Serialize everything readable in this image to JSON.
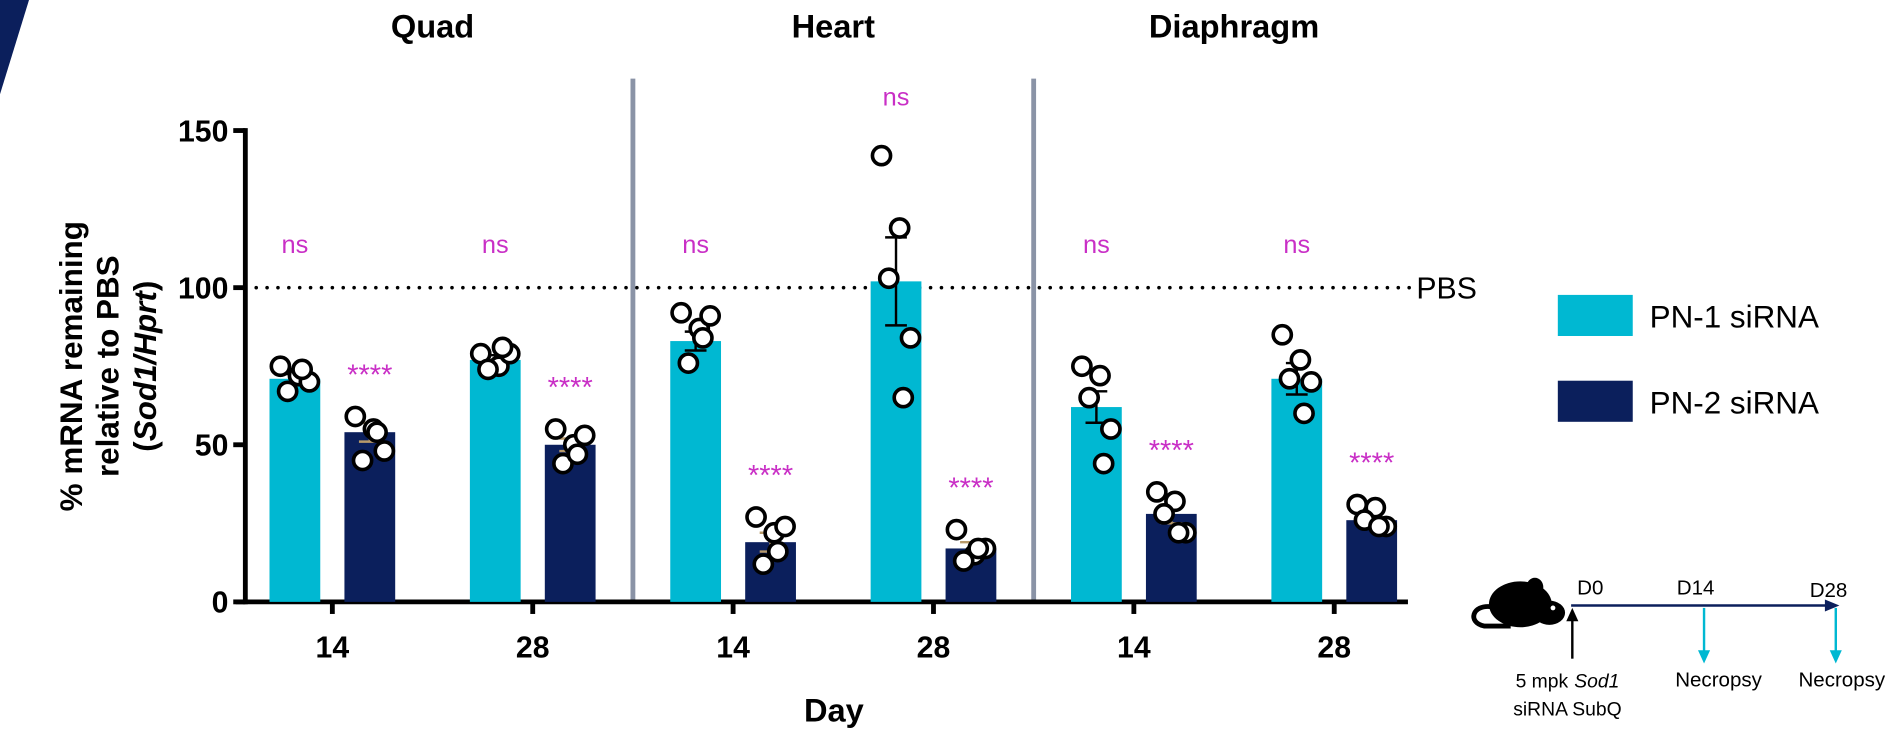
{
  "chart_data": {
    "type": "bar",
    "groups": [
      "Quad",
      "Heart",
      "Diaphragm"
    ],
    "categories": [
      "14",
      "28",
      "14",
      "28",
      "14",
      "28"
    ],
    "xlabel": "Day",
    "ylabel": [
      "% mRNA remaining",
      "relative to PBS",
      [
        "(",
        "Sod1/Hprt",
        ")"
      ]
    ],
    "ylim": [
      0,
      150
    ],
    "yticks": [
      0,
      50,
      100,
      150
    ],
    "reference_line": {
      "value": 100,
      "label": "PBS"
    },
    "series": [
      {
        "name": "PN-1 siRNA",
        "color": "#00b8d2",
        "values": [
          71,
          77,
          83,
          102,
          62,
          71
        ],
        "errors": [
          1.5,
          1.5,
          3,
          14,
          5,
          5
        ],
        "points": [
          [
            75,
            72,
            67,
            70,
            74
          ],
          [
            79,
            75,
            74,
            79,
            81
          ],
          [
            92,
            87,
            76,
            91,
            84
          ],
          [
            142,
            119,
            103,
            84,
            65
          ],
          [
            75,
            72,
            65,
            55,
            44
          ],
          [
            85,
            77,
            71,
            70,
            60
          ]
        ],
        "significance": [
          "ns",
          "ns",
          "ns",
          "ns",
          "ns",
          "ns"
        ]
      },
      {
        "name": "PN-2 siRNA",
        "color": "#0b1f5c",
        "values": [
          54,
          50,
          19,
          17,
          28,
          26
        ],
        "errors": [
          3,
          2,
          3,
          2,
          3,
          2
        ],
        "points": [
          [
            59,
            55,
            45,
            48,
            54
          ],
          [
            55,
            50,
            44,
            53,
            47
          ],
          [
            27,
            22,
            12,
            24,
            16
          ],
          [
            23,
            15,
            13,
            17,
            17
          ],
          [
            35,
            32,
            28,
            22,
            22
          ],
          [
            31,
            30,
            26,
            24,
            24
          ]
        ],
        "significance": [
          "****",
          "****",
          "****",
          "****",
          "****",
          "****"
        ]
      }
    ],
    "significance_color": "#c92fc6",
    "timeline": {
      "days": [
        "D0",
        "D14",
        "D28"
      ],
      "dose": [
        "5 mpk",
        "Sod1",
        "siRNA SubQ"
      ],
      "events": [
        "Necropsy",
        "Necropsy"
      ]
    }
  }
}
